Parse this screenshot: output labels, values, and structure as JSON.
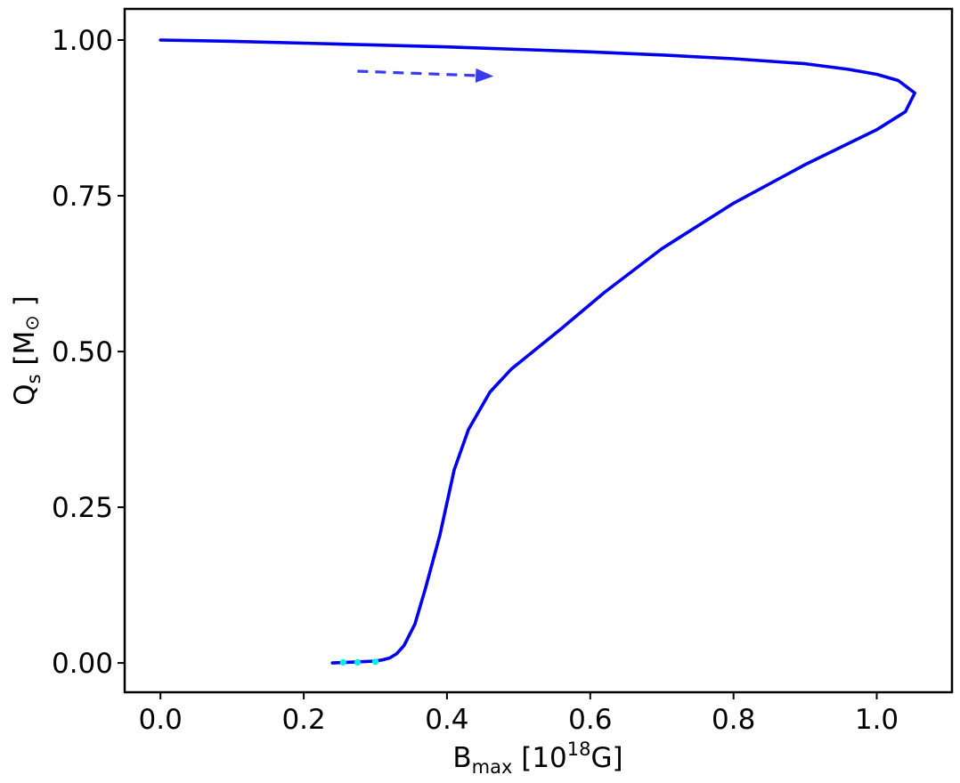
{
  "chart_data": {
    "type": "line",
    "title": "",
    "xlabel": {
      "main": "B",
      "sub": "max",
      "unit_prefix": " [10",
      "unit_exp": "18",
      "unit_suffix": "G]"
    },
    "ylabel": {
      "main": "Q",
      "sub": "s",
      "unit_prefix": " [M",
      "unit_sub": "⊙",
      "unit_suffix": " ]"
    },
    "xlim": [
      -0.05,
      1.105
    ],
    "ylim": [
      -0.047,
      1.05
    ],
    "xticks": [
      0.0,
      0.2,
      0.4,
      0.6,
      0.8,
      1.0
    ],
    "xtick_labels": [
      "0.0",
      "0.2",
      "0.4",
      "0.6",
      "0.8",
      "1.0"
    ],
    "yticks": [
      0.0,
      0.25,
      0.5,
      0.75,
      1.0
    ],
    "ytick_labels": [
      "0.00",
      "0.25",
      "0.50",
      "0.75",
      "1.00"
    ],
    "grid": false,
    "colors": {
      "line": "#0000ee",
      "arrow": "#3a3aee",
      "markers": "#00eeee"
    },
    "series": [
      {
        "x": [
          0.0,
          0.1,
          0.2,
          0.3,
          0.4,
          0.5,
          0.6,
          0.7,
          0.8,
          0.9,
          0.96,
          1.0,
          1.03,
          1.053,
          1.04,
          1.0,
          0.9,
          0.8,
          0.7,
          0.62,
          0.56,
          0.52,
          0.49,
          0.46,
          0.43,
          0.41,
          0.39,
          0.37,
          0.355,
          0.34,
          0.33,
          0.32,
          0.31,
          0.3,
          0.28,
          0.26,
          0.24
        ],
        "y": [
          1.0,
          0.998,
          0.995,
          0.992,
          0.989,
          0.985,
          0.981,
          0.976,
          0.97,
          0.962,
          0.953,
          0.945,
          0.935,
          0.915,
          0.885,
          0.856,
          0.8,
          0.738,
          0.665,
          0.595,
          0.537,
          0.5,
          0.472,
          0.435,
          0.375,
          0.31,
          0.205,
          0.12,
          0.062,
          0.028,
          0.015,
          0.008,
          0.005,
          0.003,
          0.002,
          0.001,
          0.0
        ]
      }
    ],
    "markers": {
      "x": [
        0.255,
        0.275,
        0.3
      ],
      "y": [
        0.001,
        0.001,
        0.002
      ]
    },
    "arrow": {
      "x": [
        0.275,
        0.465
      ],
      "y": [
        0.95,
        0.942
      ]
    }
  }
}
